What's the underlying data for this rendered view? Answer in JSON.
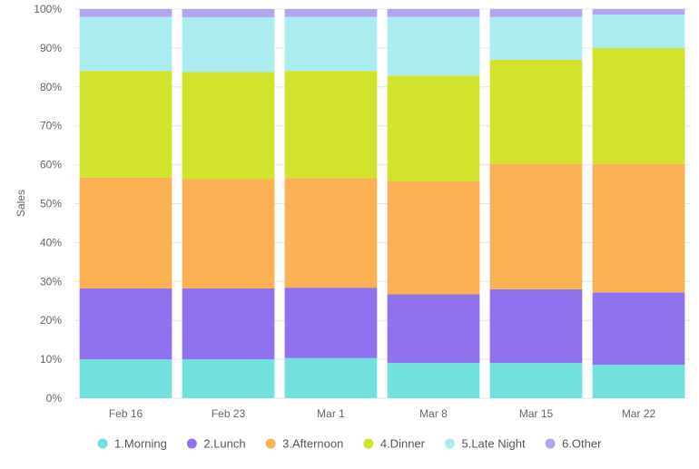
{
  "chart_data": {
    "type": "bar",
    "stacked": "percent",
    "ylabel": "Sales",
    "xlabel": "",
    "ylim": [
      0,
      100
    ],
    "yticks": [
      "0%",
      "10%",
      "20%",
      "30%",
      "40%",
      "50%",
      "60%",
      "70%",
      "80%",
      "90%",
      "100%"
    ],
    "categories": [
      "Feb 16",
      "Feb 23",
      "Mar 1",
      "Mar 8",
      "Mar 15",
      "Mar 22"
    ],
    "grid": true,
    "legend_position": "bottom",
    "series": [
      {
        "name": "1.Morning",
        "color": "#72e1de",
        "values": [
          10.0,
          10.0,
          10.3,
          9.1,
          9.1,
          8.6
        ]
      },
      {
        "name": "2.Lunch",
        "color": "#9071ee",
        "values": [
          18.2,
          18.2,
          18.1,
          17.6,
          18.9,
          18.6
        ]
      },
      {
        "name": "3.Afternoon",
        "color": "#f9b154",
        "values": [
          28.5,
          28.1,
          28.2,
          29.1,
          32.3,
          33.1
        ]
      },
      {
        "name": "4.Dinner",
        "color": "#d2e32d",
        "values": [
          27.4,
          27.5,
          27.5,
          27.1,
          26.7,
          29.7
        ]
      },
      {
        "name": "5.Late Night",
        "color": "#aaecef",
        "values": [
          13.9,
          14.1,
          13.9,
          15.1,
          11.0,
          8.6
        ]
      },
      {
        "name": "6.Other",
        "color": "#b4a5ee",
        "values": [
          2.0,
          2.1,
          2.0,
          2.0,
          2.0,
          1.4
        ]
      }
    ]
  }
}
